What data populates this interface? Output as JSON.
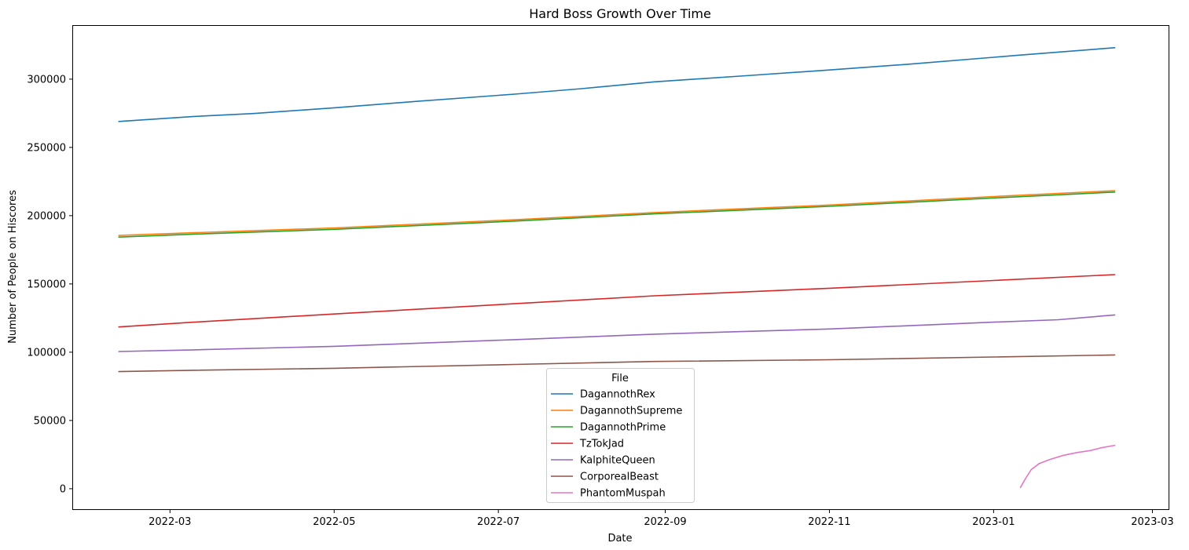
{
  "chart_data": {
    "type": "line",
    "title": "Hard Boss Growth Over Time",
    "xlabel": "Date",
    "ylabel": "Number of People on Hiscores",
    "x_range": [
      "2022-01-24",
      "2023-03-07"
    ],
    "ylim": [
      -15000,
      339000
    ],
    "x_ticks": [
      {
        "date": "2022-03-01",
        "label": "2022-03"
      },
      {
        "date": "2022-05-01",
        "label": "2022-05"
      },
      {
        "date": "2022-07-01",
        "label": "2022-07"
      },
      {
        "date": "2022-09-01",
        "label": "2022-09"
      },
      {
        "date": "2022-11-01",
        "label": "2022-11"
      },
      {
        "date": "2023-01-01",
        "label": "2023-01"
      },
      {
        "date": "2023-03-01",
        "label": "2023-03"
      }
    ],
    "y_ticks": [
      0,
      50000,
      100000,
      150000,
      200000,
      250000,
      300000
    ],
    "grid": false,
    "legend": {
      "title": "File",
      "position": "lower center"
    },
    "series": [
      {
        "name": "DagannothRex",
        "color": "#1f77b4",
        "points": [
          {
            "x": "2022-02-10",
            "y": 269000
          },
          {
            "x": "2022-03-10",
            "y": 272700
          },
          {
            "x": "2022-04-01",
            "y": 274800
          },
          {
            "x": "2022-05-01",
            "y": 279000
          },
          {
            "x": "2022-06-01",
            "y": 283800
          },
          {
            "x": "2022-07-07",
            "y": 289000
          },
          {
            "x": "2022-08-01",
            "y": 293000
          },
          {
            "x": "2022-08-28",
            "y": 298000
          },
          {
            "x": "2022-10-01",
            "y": 302500
          },
          {
            "x": "2022-11-01",
            "y": 306700
          },
          {
            "x": "2022-12-01",
            "y": 311000
          },
          {
            "x": "2023-01-01",
            "y": 316000
          },
          {
            "x": "2023-01-10",
            "y": 317500
          },
          {
            "x": "2023-02-15",
            "y": 323000
          }
        ]
      },
      {
        "name": "DagannothSupreme",
        "color": "#ff7f0e",
        "points": [
          {
            "x": "2022-02-10",
            "y": 185500
          },
          {
            "x": "2022-03-10",
            "y": 187500
          },
          {
            "x": "2022-05-01",
            "y": 191000
          },
          {
            "x": "2022-07-07",
            "y": 197000
          },
          {
            "x": "2022-08-28",
            "y": 202300
          },
          {
            "x": "2022-11-01",
            "y": 207800
          },
          {
            "x": "2023-01-01",
            "y": 214000
          },
          {
            "x": "2023-02-15",
            "y": 218300
          }
        ]
      },
      {
        "name": "DagannothPrime",
        "color": "#2ca02c",
        "points": [
          {
            "x": "2022-02-10",
            "y": 184300
          },
          {
            "x": "2022-03-10",
            "y": 186500
          },
          {
            "x": "2022-05-01",
            "y": 190000
          },
          {
            "x": "2022-07-07",
            "y": 196000
          },
          {
            "x": "2022-08-28",
            "y": 201300
          },
          {
            "x": "2022-11-01",
            "y": 206800
          },
          {
            "x": "2023-01-01",
            "y": 213000
          },
          {
            "x": "2023-02-15",
            "y": 217300
          }
        ]
      },
      {
        "name": "TzTokJad",
        "color": "#d62728",
        "points": [
          {
            "x": "2022-02-10",
            "y": 118500
          },
          {
            "x": "2022-03-10",
            "y": 122000
          },
          {
            "x": "2022-05-01",
            "y": 128000
          },
          {
            "x": "2022-07-07",
            "y": 135500
          },
          {
            "x": "2022-08-28",
            "y": 141300
          },
          {
            "x": "2022-11-01",
            "y": 146800
          },
          {
            "x": "2023-01-01",
            "y": 152500
          },
          {
            "x": "2023-02-15",
            "y": 156800
          }
        ]
      },
      {
        "name": "KalphiteQueen",
        "color": "#9467bd",
        "points": [
          {
            "x": "2022-02-10",
            "y": 100500
          },
          {
            "x": "2022-03-10",
            "y": 101700
          },
          {
            "x": "2022-05-01",
            "y": 104300
          },
          {
            "x": "2022-07-07",
            "y": 109200
          },
          {
            "x": "2022-08-28",
            "y": 113200
          },
          {
            "x": "2022-11-01",
            "y": 117000
          },
          {
            "x": "2023-01-01",
            "y": 122000
          },
          {
            "x": "2023-01-25",
            "y": 123800
          },
          {
            "x": "2023-02-15",
            "y": 127300
          }
        ]
      },
      {
        "name": "CorporealBeast",
        "color": "#8c564b",
        "points": [
          {
            "x": "2022-02-10",
            "y": 85800
          },
          {
            "x": "2022-03-10",
            "y": 86800
          },
          {
            "x": "2022-05-01",
            "y": 88200
          },
          {
            "x": "2022-07-07",
            "y": 91000
          },
          {
            "x": "2022-08-28",
            "y": 93200
          },
          {
            "x": "2022-11-01",
            "y": 94500
          },
          {
            "x": "2023-01-01",
            "y": 96500
          },
          {
            "x": "2023-02-15",
            "y": 98000
          }
        ]
      },
      {
        "name": "PhantomMuspah",
        "color": "#e377c2",
        "points": [
          {
            "x": "2023-01-11",
            "y": 1000
          },
          {
            "x": "2023-01-13",
            "y": 8000
          },
          {
            "x": "2023-01-15",
            "y": 14000
          },
          {
            "x": "2023-01-18",
            "y": 18500
          },
          {
            "x": "2023-01-22",
            "y": 21500
          },
          {
            "x": "2023-01-27",
            "y": 24500
          },
          {
            "x": "2023-02-01",
            "y": 26500
          },
          {
            "x": "2023-02-06",
            "y": 28000
          },
          {
            "x": "2023-02-10",
            "y": 30000
          },
          {
            "x": "2023-02-15",
            "y": 31800
          }
        ]
      }
    ]
  }
}
